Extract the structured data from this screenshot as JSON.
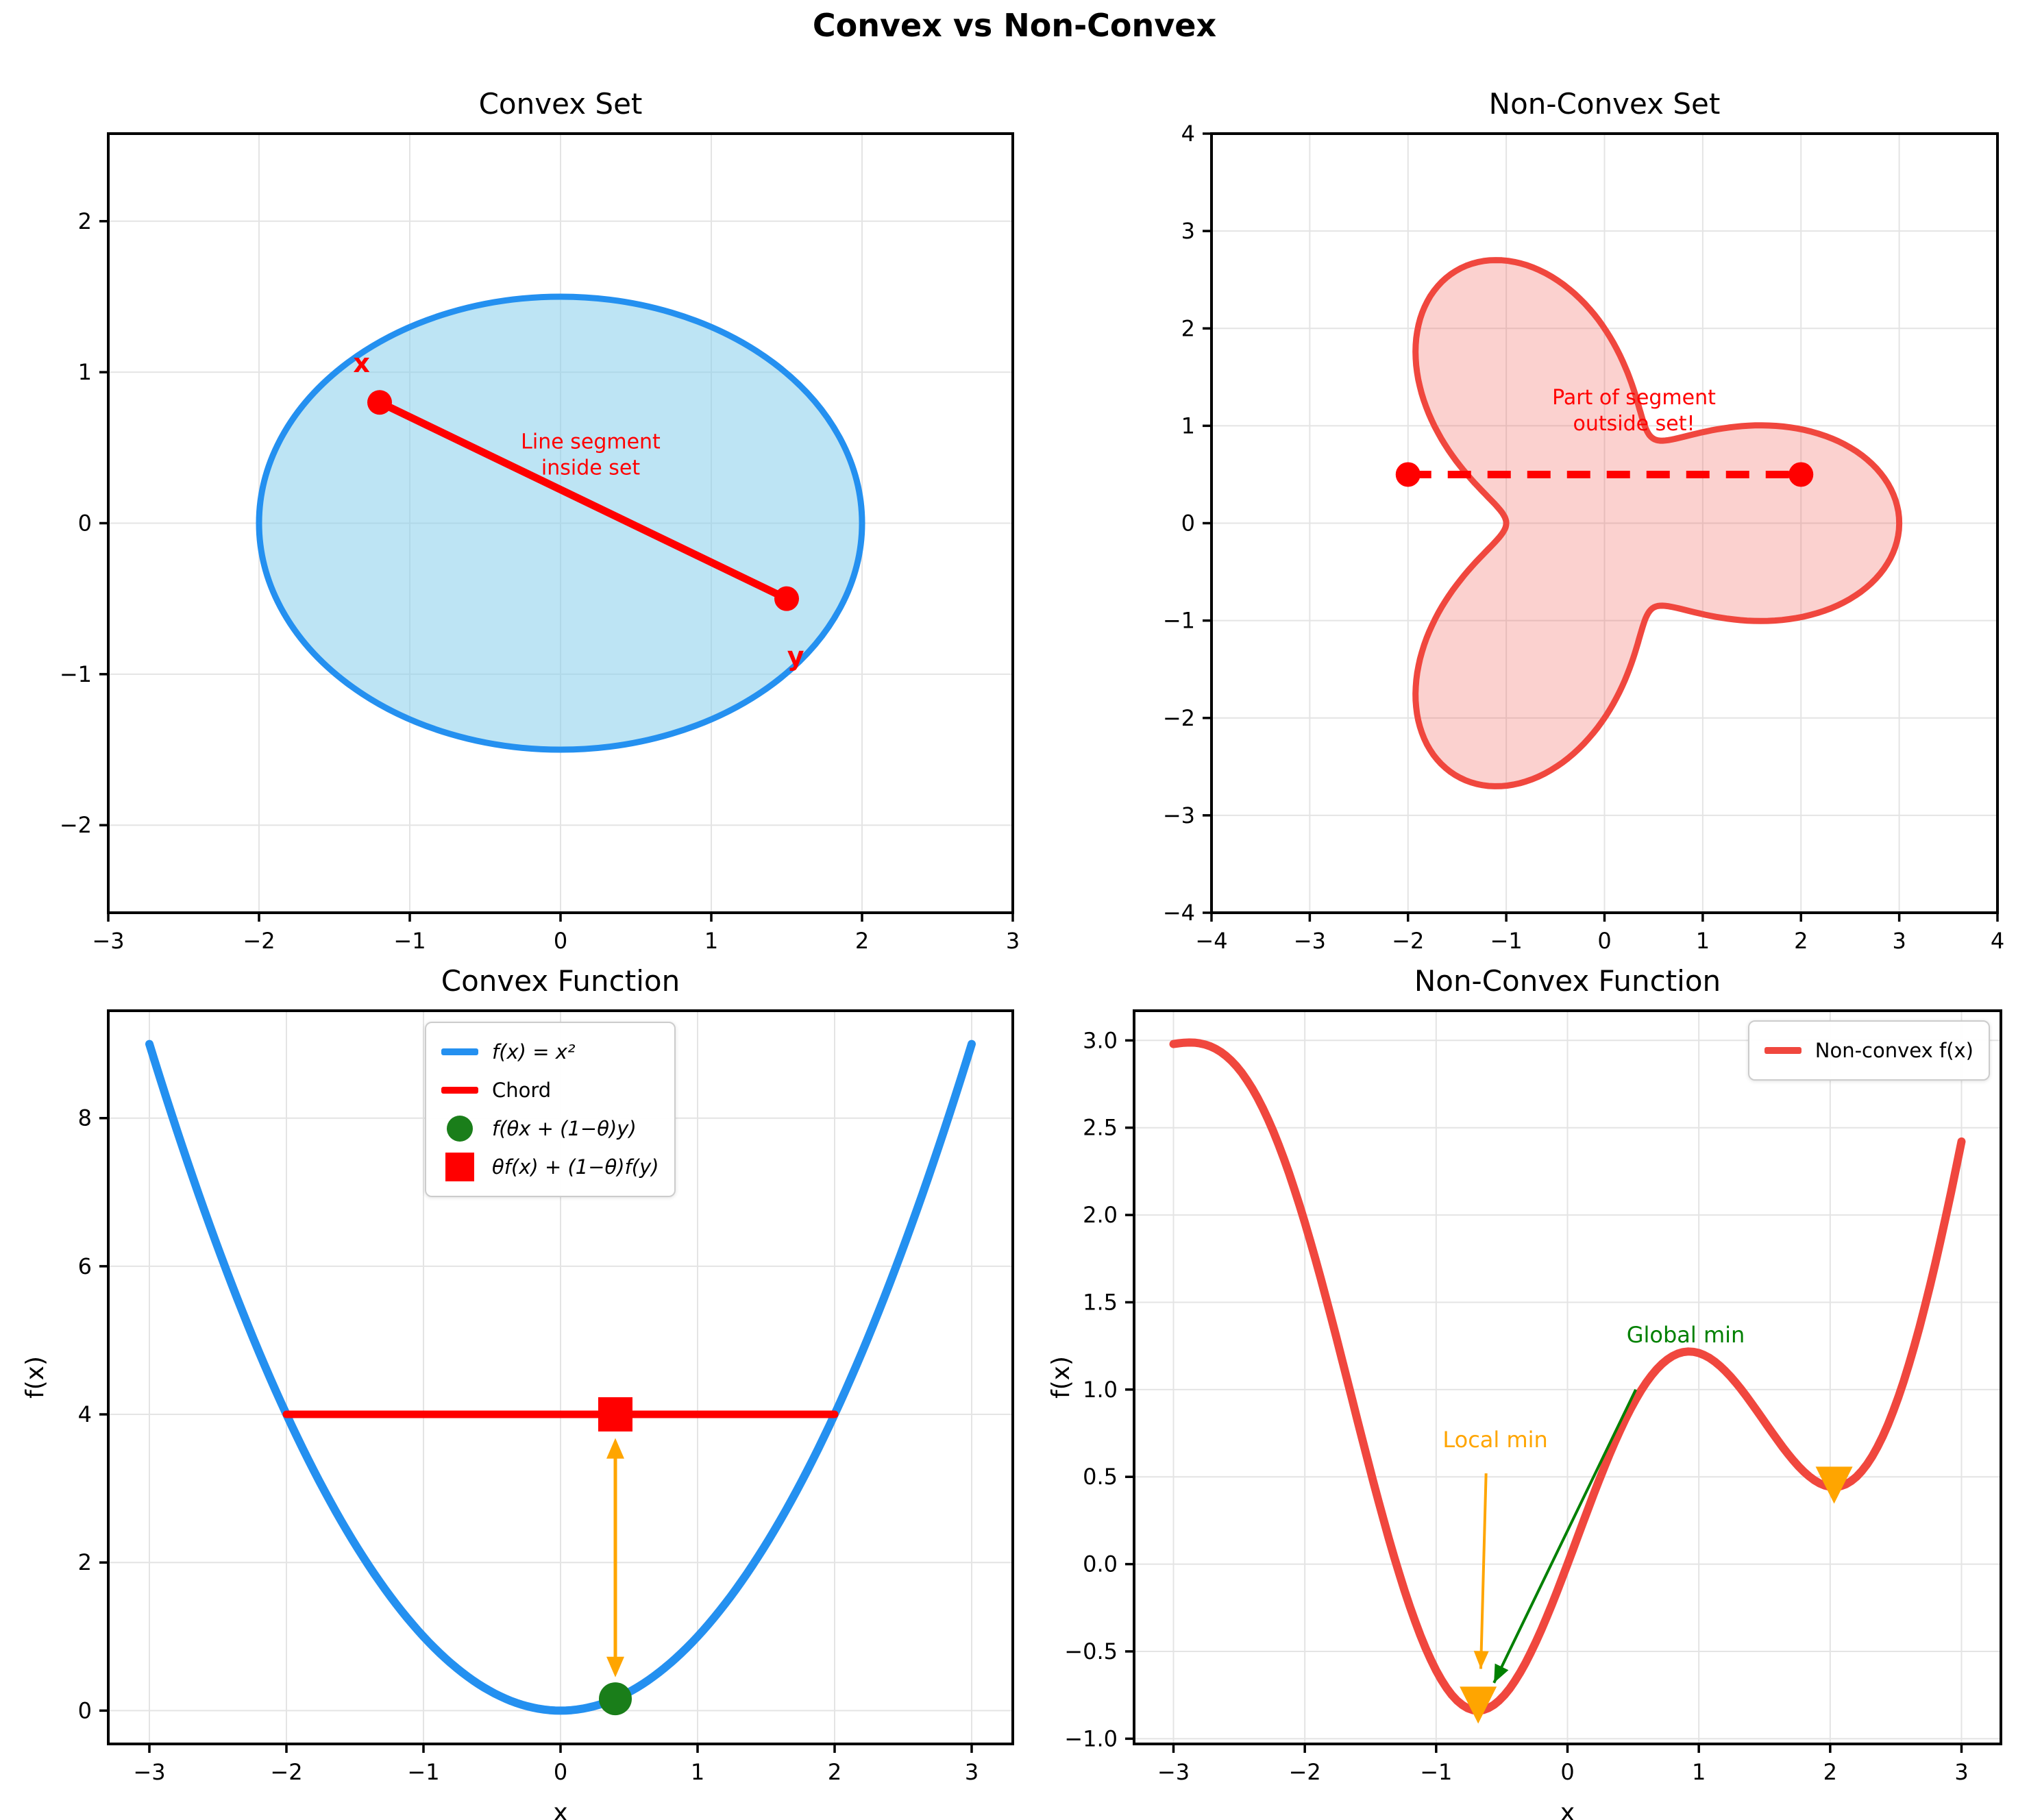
{
  "figure_title": "Convex vs Non-Convex",
  "colors": {
    "blue": "#2490F0",
    "blue_fill": "rgba(135,206,235,0.55)",
    "pure_red": "#FF0000",
    "soft_red": "#F0473E",
    "soft_red_fill": "rgba(240,71,62,0.25)",
    "dark_green": "#1A7E1A",
    "green": "#008000",
    "orange": "#FFA500",
    "grid": "#E4E4E4",
    "spine": "#000000"
  },
  "chart_data": [
    {
      "type": "area",
      "title": "Convex Set",
      "xlim": [
        -3,
        3
      ],
      "ylim": [
        -2.58,
        2.58
      ],
      "xtick_vals": [
        -3,
        -2,
        -1,
        0,
        1,
        2,
        3
      ],
      "xticks": [
        "−3",
        "−2",
        "−1",
        "0",
        "1",
        "2",
        "3"
      ],
      "ytick_vals": [
        -2,
        -1,
        0,
        1,
        2
      ],
      "yticks": [
        "−2",
        "−1",
        "0",
        "1",
        "2"
      ],
      "grid": true,
      "set_shape": {
        "kind": "ellipse",
        "center": [
          0,
          0
        ],
        "rx": 2,
        "ry": 1.5
      },
      "points": [
        {
          "label": "x",
          "x": -1.2,
          "y": 0.8,
          "label_x": -1.32,
          "label_y": 1.06
        },
        {
          "label": "y",
          "x": 1.5,
          "y": -0.5,
          "label_x": 1.56,
          "label_y": -0.88
        }
      ],
      "segment": {
        "x1": -1.2,
        "y1": 0.8,
        "x2": 1.5,
        "y2": -0.5,
        "style": "solid"
      },
      "annotation": {
        "text": "Line segment\ninside set",
        "x": 0.2,
        "y": 0.45
      }
    },
    {
      "type": "area",
      "title": "Non-Convex Set",
      "xlim": [
        -4,
        4
      ],
      "ylim": [
        -4,
        4
      ],
      "xtick_vals": [
        -4,
        -3,
        -2,
        -1,
        0,
        1,
        2,
        3,
        4
      ],
      "xticks": [
        "−4",
        "−3",
        "−2",
        "−1",
        "0",
        "1",
        "2",
        "3",
        "4"
      ],
      "ytick_vals": [
        -4,
        -3,
        -2,
        -1,
        0,
        1,
        2,
        3,
        4
      ],
      "yticks": [
        "−4",
        "−3",
        "−2",
        "−1",
        "0",
        "1",
        "2",
        "3",
        "4"
      ],
      "grid": true,
      "set_shape": {
        "kind": "polar_blob",
        "formula": "r(θ) = 2 + cos(3θ)",
        "base_r": 2,
        "amp": 1,
        "lobes": 3
      },
      "points": [
        {
          "label": "",
          "x": -2,
          "y": 0.5
        },
        {
          "label": "",
          "x": 2,
          "y": 0.5
        }
      ],
      "segment": {
        "x1": -2,
        "y1": 0.5,
        "x2": 2,
        "y2": 0.5,
        "style": "dashed"
      },
      "annotation": {
        "text": "Part of segment\noutside set!",
        "x": 0.3,
        "y": 1.15
      }
    },
    {
      "type": "line",
      "title": "Convex Function",
      "xlabel": "x",
      "ylabel": "f(x)",
      "xlim": [
        -3.3,
        3.3
      ],
      "ylim": [
        -0.45,
        9.45
      ],
      "xtick_vals": [
        -3,
        -2,
        -1,
        0,
        1,
        2,
        3
      ],
      "xticks": [
        "−3",
        "−2",
        "−1",
        "0",
        "1",
        "2",
        "3"
      ],
      "ytick_vals": [
        0,
        2,
        4,
        6,
        8
      ],
      "yticks": [
        "0",
        "2",
        "4",
        "6",
        "8"
      ],
      "grid": true,
      "curve": {
        "label": "f(x) = x²",
        "formula": "x^2",
        "x_min": -3,
        "x_max": 3,
        "sample_x": [
          -3,
          -2.5,
          -2,
          -1.5,
          -1,
          -0.5,
          0,
          0.5,
          1,
          1.5,
          2,
          2.5,
          3
        ],
        "sample_y": [
          9,
          6.25,
          4,
          2.25,
          1,
          0.25,
          0,
          0.25,
          1,
          2.25,
          4,
          6.25,
          9
        ]
      },
      "x_value": -2,
      "y_value": 2,
      "theta": 0.4,
      "chord": {
        "label": "Chord",
        "x1": -2,
        "y1": 4,
        "x2": 2,
        "y2": 4
      },
      "interp_point": {
        "label": "f(θx + (1−θ)y)",
        "x": 0.4,
        "y": 0.16
      },
      "combo_point": {
        "label": "θf(x) + (1−θ)f(y)",
        "x": 0.4,
        "y": 4
      },
      "gap_arrow": {
        "x": 0.4,
        "y1": 0.45,
        "y2": 3.68
      },
      "legend": {
        "position": "upper-center-right",
        "entries": [
          {
            "swatch": "line",
            "color": "#2490F0",
            "label": "f(x) = x²",
            "italic": true
          },
          {
            "swatch": "line",
            "color": "#FF0000",
            "label": "Chord",
            "italic": false
          },
          {
            "swatch": "circle",
            "color": "#1A7E1A",
            "label": "f(θx + (1−θ)y)",
            "italic": true
          },
          {
            "swatch": "square",
            "color": "#FF0000",
            "label": "θf(x) + (1−θ)f(y)",
            "italic": true
          }
        ]
      }
    },
    {
      "type": "line",
      "title": "Non-Convex Function",
      "xlabel": "x",
      "ylabel": "f(x)",
      "xlim": [
        -3.3,
        3.3
      ],
      "ylim": [
        -1.03,
        3.17
      ],
      "xtick_vals": [
        -3,
        -2,
        -1,
        0,
        1,
        2,
        3
      ],
      "xticks": [
        "−3",
        "−2",
        "−1",
        "0",
        "1",
        "2",
        "3"
      ],
      "ytick_vals": [
        3.0,
        2.5,
        2.0,
        1.5,
        1.0,
        0.5,
        0.0,
        -0.5,
        -1.0
      ],
      "yticks": [
        "3.0",
        "2.5",
        "2.0",
        "1.5",
        "1.0",
        "0.5",
        "0.0",
        "−0.5",
        "−1.0"
      ],
      "grid": true,
      "curve": {
        "label": "Non-convex f(x)",
        "formula": "0.3*x^2 + sin(2*x)",
        "x_min": -3,
        "x_max": 3,
        "sample_x": [
          -3,
          -2.5,
          -2,
          -1.5,
          -1,
          -0.5,
          0,
          0.5,
          1,
          1.5,
          2,
          2.5,
          3
        ],
        "sample_y": [
          2.979,
          2.834,
          1.957,
          0.534,
          -0.609,
          -0.766,
          0,
          0.917,
          1.209,
          0.816,
          0.443,
          0.916,
          2.421
        ]
      },
      "extrema": {
        "global_min": {
          "x": -0.68,
          "y": -0.84
        },
        "local_min": {
          "x": 2.03,
          "y": 0.44
        },
        "local_max": {
          "x": 0.93,
          "y": 1.22
        }
      },
      "min_markers": [
        {
          "x": -0.68,
          "y": -0.8
        },
        {
          "x": 2.03,
          "y": 0.46
        }
      ],
      "annotations": [
        {
          "text": "Local min",
          "color": "#FFA500",
          "text_x": -0.55,
          "text_y": 0.67,
          "tail_x": -0.62,
          "tail_y": 0.52,
          "tip_x": -0.66,
          "tip_y": -0.6
        },
        {
          "text": "Global min",
          "color": "#008000",
          "text_x": 0.9,
          "text_y": 1.27,
          "tail_x": 0.52,
          "tail_y": 1.0,
          "tip_x": -0.56,
          "tip_y": -0.68
        }
      ],
      "legend": {
        "position": "upper-right",
        "entries": [
          {
            "swatch": "line",
            "color": "#F0473E",
            "label": "Non-convex f(x)",
            "italic": false
          }
        ]
      }
    }
  ]
}
